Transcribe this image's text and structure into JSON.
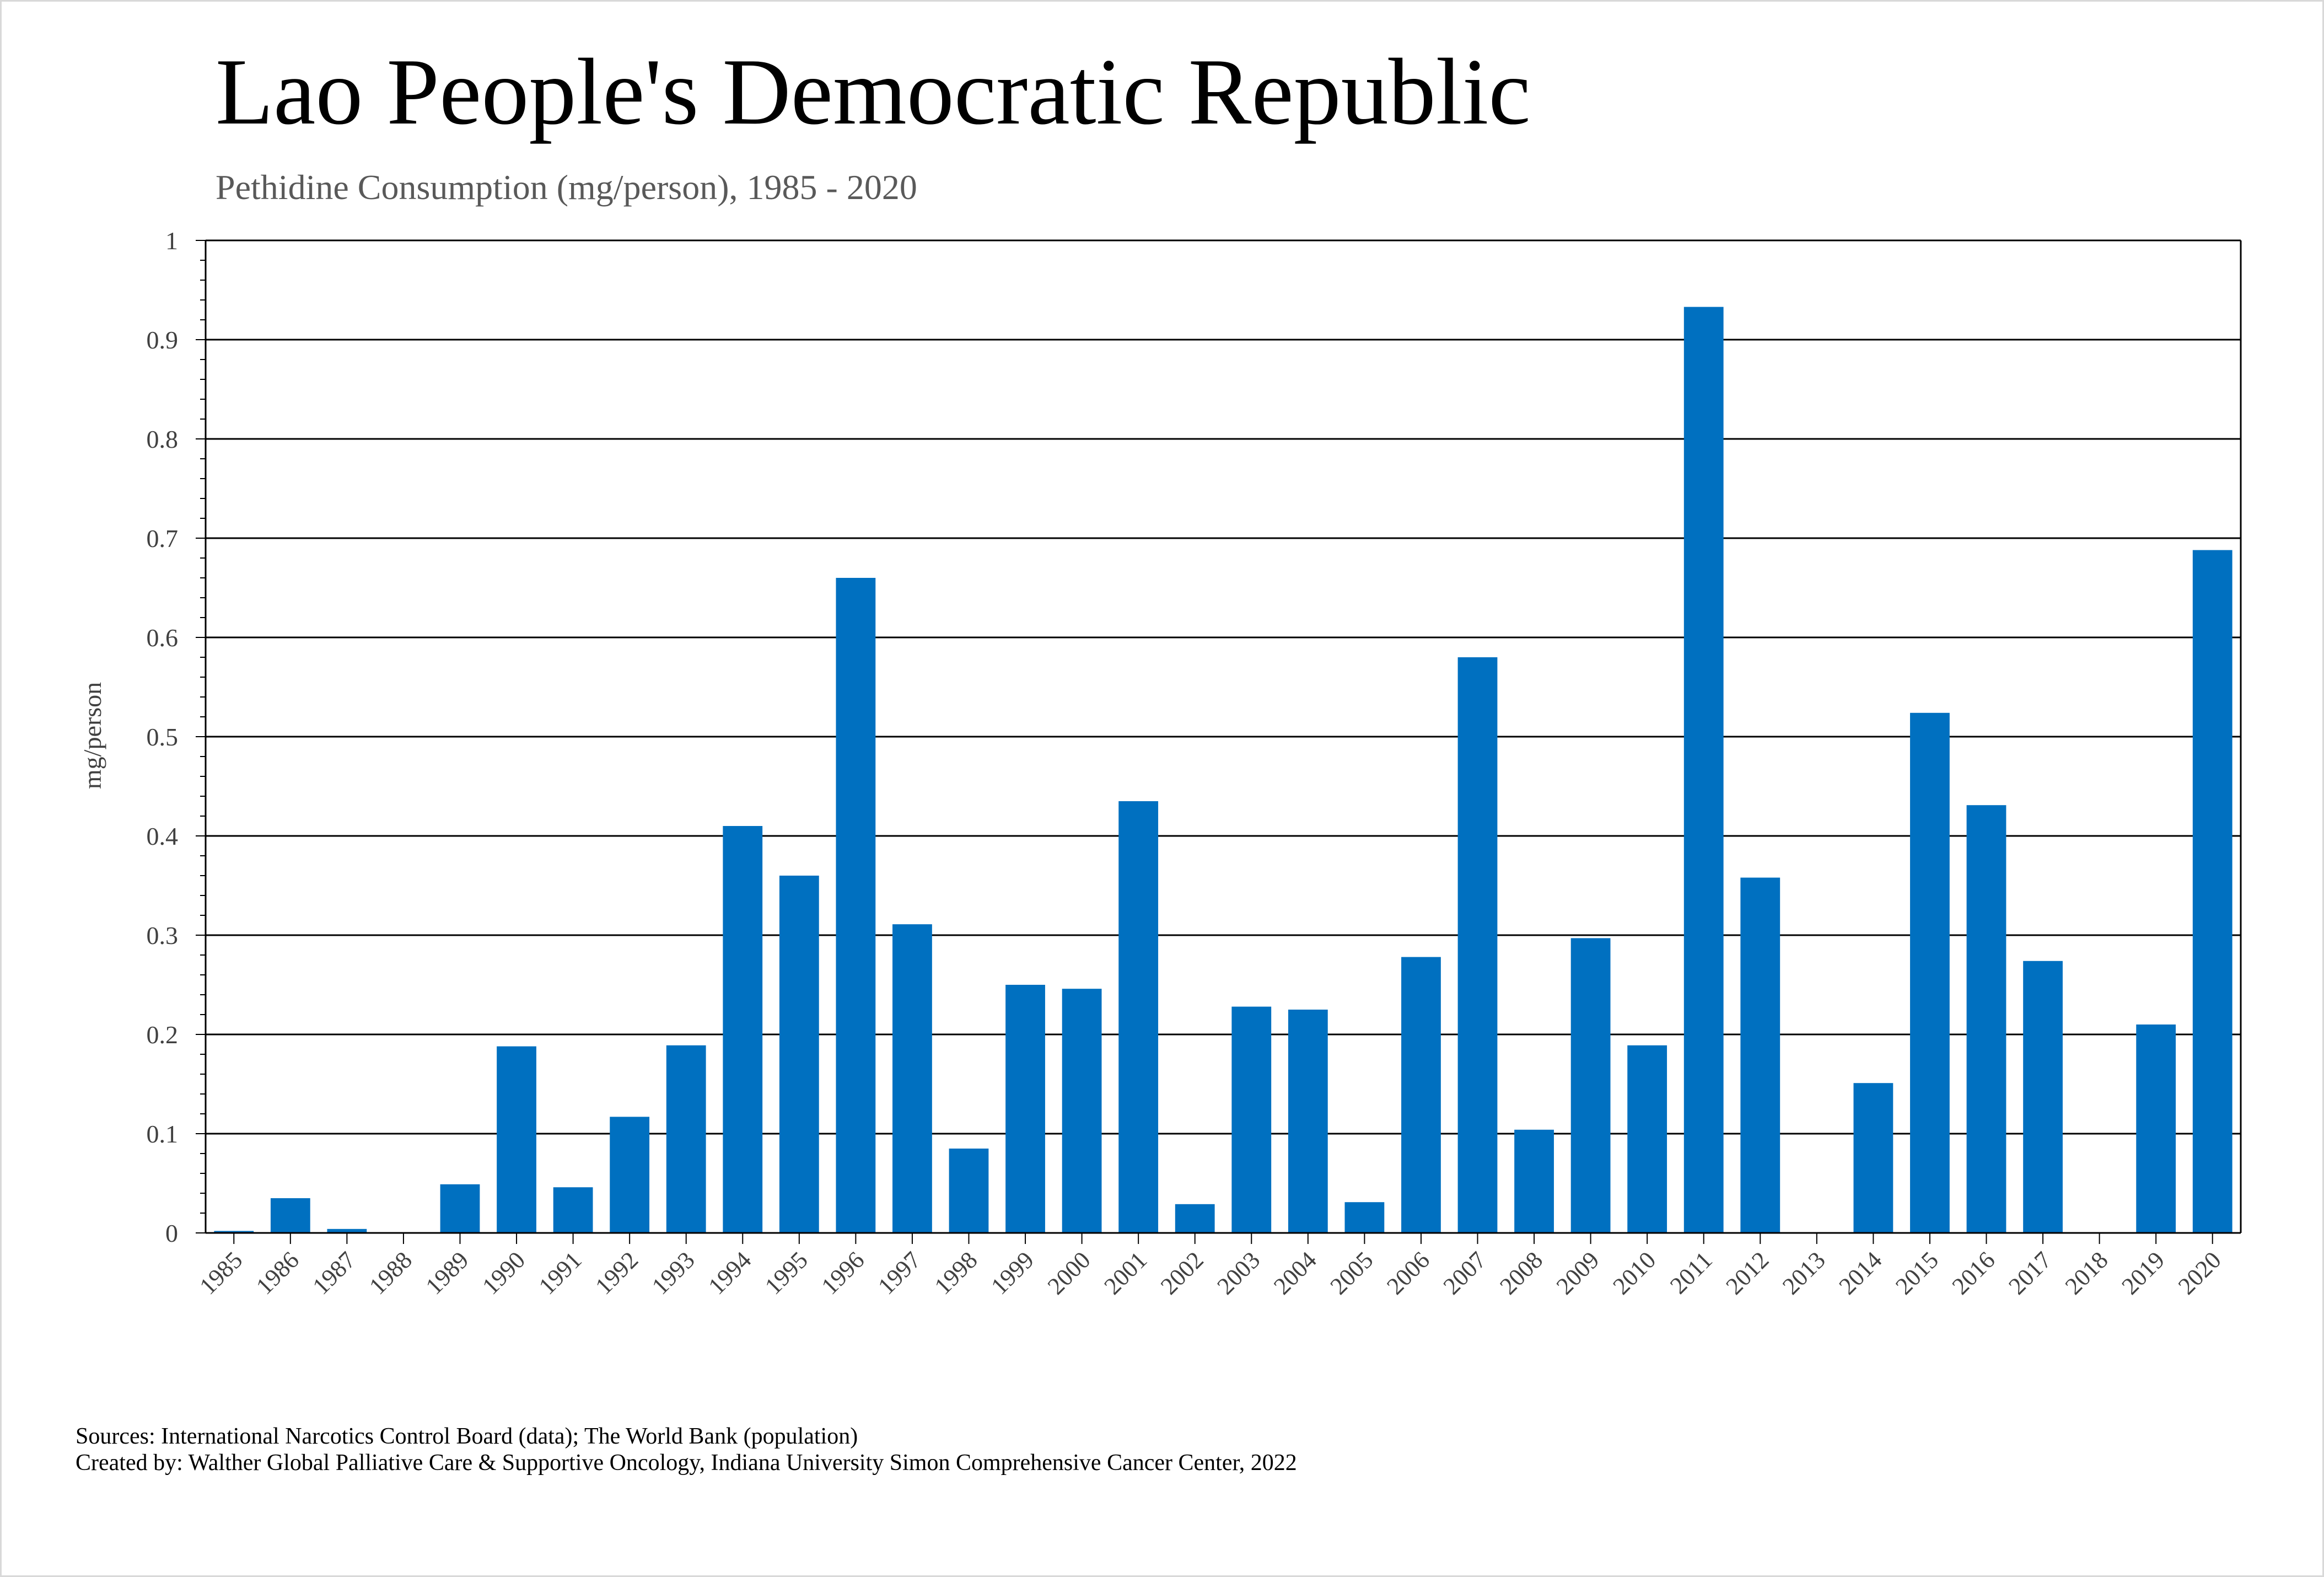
{
  "title": "Lao People's Democratic Republic",
  "subtitle": "Pethidine Consumption (mg/person), 1985 - 2020",
  "footnotes": {
    "sources": "Sources: International Narcotics Control Board (data); The World Bank (population)",
    "created_by": "Created by: Walther Global Palliative Care & Supportive Oncology, Indiana University Simon Comprehensive Cancer Center, 2022"
  },
  "colors": {
    "bar": "#0070C0",
    "gridline": "#000000",
    "axis_text": "#404040"
  },
  "chart_data": {
    "type": "bar",
    "title": "Lao People's Democratic Republic",
    "subtitle": "Pethidine Consumption (mg/person), 1985 - 2020",
    "xlabel": "",
    "ylabel": "mg/person",
    "ylim": [
      0,
      1
    ],
    "yticks": [
      "0",
      "0.1",
      "0.2",
      "0.3",
      "0.4",
      "0.5",
      "0.6",
      "0.7",
      "0.8",
      "0.9",
      "1"
    ],
    "grid": true,
    "legend": "none",
    "categories": [
      "1985",
      "1986",
      "1987",
      "1988",
      "1989",
      "1990",
      "1991",
      "1992",
      "1993",
      "1994",
      "1995",
      "1996",
      "1997",
      "1998",
      "1999",
      "2000",
      "2001",
      "2002",
      "2003",
      "2004",
      "2005",
      "2006",
      "2007",
      "2008",
      "2009",
      "2010",
      "2011",
      "2012",
      "2013",
      "2014",
      "2015",
      "2016",
      "2017",
      "2018",
      "2019",
      "2020"
    ],
    "values": [
      0.002,
      0.035,
      0.004,
      0,
      0.049,
      0.188,
      0.046,
      0.117,
      0.189,
      0.41,
      0.36,
      0.66,
      0.311,
      0.085,
      0.25,
      0.246,
      0.435,
      0.029,
      0.228,
      0.225,
      0.031,
      0.278,
      0.58,
      0.104,
      0.297,
      0.189,
      0.933,
      0.358,
      0,
      0.151,
      0.524,
      0.431,
      0.274,
      0,
      0.21,
      0.688
    ]
  }
}
